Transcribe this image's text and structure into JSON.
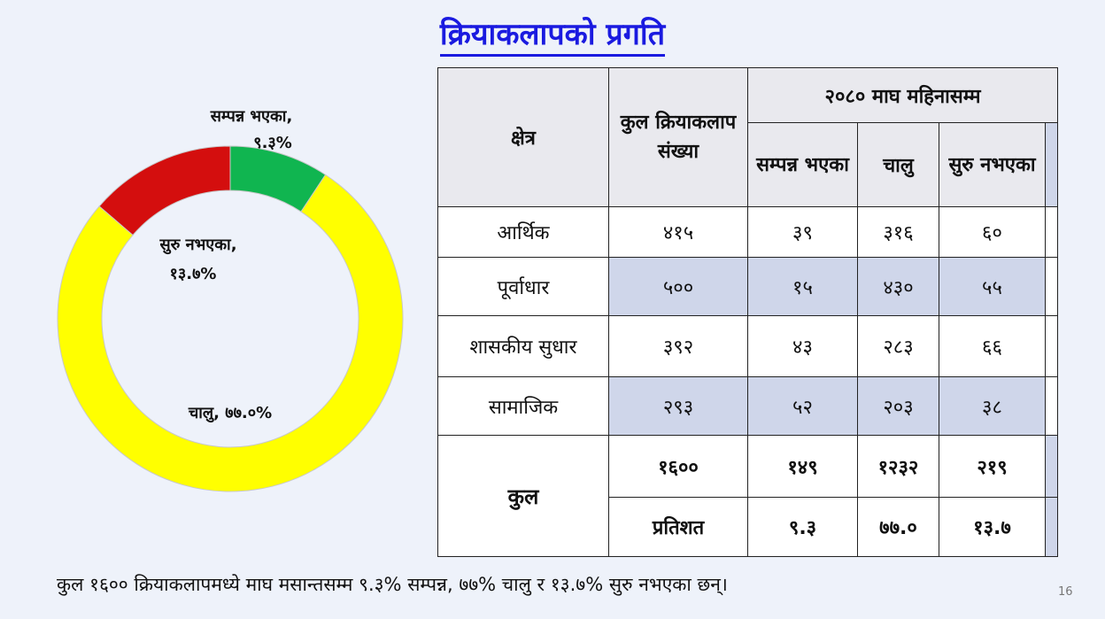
{
  "title": "क्रियाकलापको प्रगति",
  "chart_data": {
    "type": "pie",
    "series": [
      {
        "name": "सम्पन्न भएका",
        "value": 9.3,
        "label_line1": "सम्पन्न भएका,",
        "label_line2": "९.३%",
        "color": "#10b550"
      },
      {
        "name": "चालु",
        "value": 77.0,
        "label_line1": "चालु, ७७.०%",
        "label_line2": "",
        "color": "#ffff00"
      },
      {
        "name": "सुरु नभएका",
        "value": 13.7,
        "label_line1": "सुरु नभएका,",
        "label_line2": "१३.७%",
        "color": "#d40e0e"
      }
    ]
  },
  "table": {
    "col_sector": "क्षेत्र",
    "col_total": "कुल क्रियाकलाप संख्या",
    "col_group": "२०८० माघ महिनासम्म",
    "col_done": "सम्पन्न भएका",
    "col_ongoing": "चालु",
    "col_notstarted": "सुरु नभएका",
    "rows": [
      {
        "sector": "आर्थिक",
        "total": "४१५",
        "done": "३९",
        "ongoing": "३१६",
        "notstarted": "६०"
      },
      {
        "sector": "पूर्वाधार",
        "total": "५००",
        "done": "१५",
        "ongoing": "४३०",
        "notstarted": "५५"
      },
      {
        "sector": "शासकीय सुधार",
        "total": "३९२",
        "done": "४३",
        "ongoing": "२८३",
        "notstarted": "६६"
      },
      {
        "sector": "सामाजिक",
        "total": "२९३",
        "done": "५२",
        "ongoing": "२०३",
        "notstarted": "३८"
      }
    ],
    "total_label": "कुल",
    "total_row": {
      "total": "१६००",
      "done": "१४९",
      "ongoing": "१२३२",
      "notstarted": "२१९"
    },
    "percent_label": "प्रतिशत",
    "percent_row": {
      "done": "९.३",
      "ongoing": "७७.०",
      "notstarted": "१३.७"
    }
  },
  "footer": "कुल १६०० क्रियाकलापमध्ये माघ मसान्तसम्म ९.३% सम्पन्न, ७७% चालु र १३.७% सुरु नभएका छन्।",
  "page_number": "16"
}
